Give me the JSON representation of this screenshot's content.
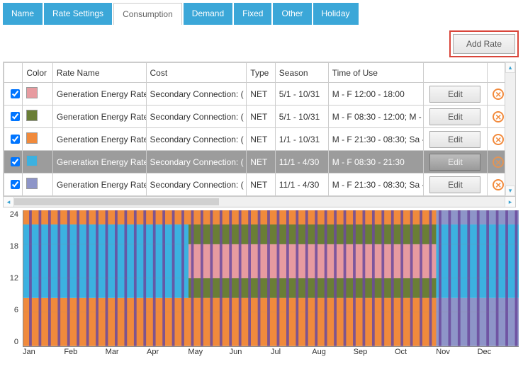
{
  "tabs": [
    {
      "label": "Name",
      "active": false
    },
    {
      "label": "Rate Settings",
      "active": false
    },
    {
      "label": "Consumption",
      "active": true
    },
    {
      "label": "Demand",
      "active": false
    },
    {
      "label": "Fixed",
      "active": false
    },
    {
      "label": "Other",
      "active": false
    },
    {
      "label": "Holiday",
      "active": false
    }
  ],
  "add_rate_label": "Add Rate",
  "columns": {
    "chk": "",
    "color": "Color",
    "rate_name": "Rate Name",
    "cost": "Cost",
    "type": "Type",
    "season": "Season",
    "tou": "Time of Use",
    "edit": "Edit",
    "del": ""
  },
  "rows": [
    {
      "checked": true,
      "color": "#e79ba0",
      "rate_name": "Generation Energy Rate:",
      "cost": "Secondary Connection: (",
      "type": "NET",
      "season": "5/1 - 10/31",
      "tou": "M - F 12:00 - 18:00",
      "selected": false
    },
    {
      "checked": true,
      "color": "#6a7e36",
      "rate_name": "Generation Energy Rate:",
      "cost": "Secondary Connection: (",
      "type": "NET",
      "season": "5/1 - 10/31",
      "tou": "M - F 08:30 - 12:00; M -",
      "selected": false
    },
    {
      "checked": true,
      "color": "#f08a3c",
      "rate_name": "Generation Energy Rate:",
      "cost": "Secondary Connection: (",
      "type": "NET",
      "season": "1/1 - 10/31",
      "tou": "M - F 21:30 - 08:30; Sa -",
      "selected": false
    },
    {
      "checked": true,
      "color": "#3cb1e0",
      "rate_name": "Generation Energy Rate:",
      "cost": "Secondary Connection: (",
      "type": "NET",
      "season": "11/1 - 4/30",
      "tou": "M - F 08:30 - 21:30",
      "selected": true
    },
    {
      "checked": true,
      "color": "#8e95c8",
      "rate_name": "Generation Energy Rate:",
      "cost": "Secondary Connection: (",
      "type": "NET",
      "season": "11/1 - 4/30",
      "tou": "M - F 21:30 - 08:30; Sa -",
      "selected": false
    }
  ],
  "edit_label": "Edit",
  "delete_symbol": "×",
  "scroll": {
    "up": "▴",
    "down": "▾",
    "left": "◂",
    "right": "▸"
  },
  "chart": {
    "y_ticks": [
      24,
      18,
      12,
      6,
      0
    ],
    "x_ticks": [
      "Jan",
      "Feb",
      "Mar",
      "Apr",
      "May",
      "Jun",
      "Jul",
      "Aug",
      "Sep",
      "Oct",
      "Nov",
      "Dec"
    ],
    "season_split_month": 4.0,
    "season_end_month": 10.0,
    "colors": {
      "pink": "#e79ba0",
      "green": "#6a7e36",
      "orange": "#f08a3c",
      "cyan": "#3cb1e0",
      "lavender": "#8e95c8",
      "stripe": "#6b4a9c"
    },
    "hours": {
      "h24": 24,
      "h2130": 21.5,
      "h18": 18,
      "h12": 12,
      "h0830": 8.5,
      "h0": 0
    }
  }
}
